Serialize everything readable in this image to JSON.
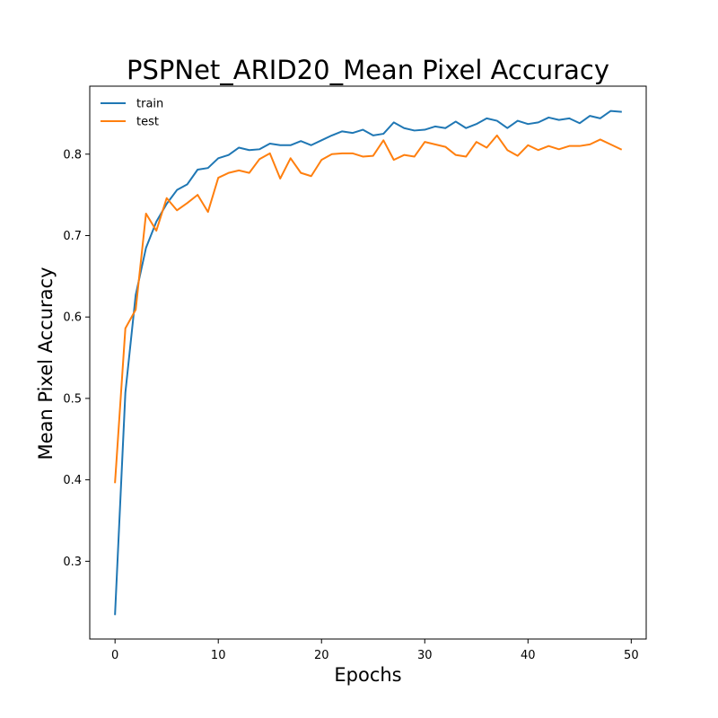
{
  "chart_data": {
    "type": "line",
    "title": "PSPNet_ARID20_Mean Pixel Accuracy",
    "xlabel": "Epochs",
    "ylabel": "Mean Pixel Accuracy",
    "xlim": [
      -2.45,
      51.45
    ],
    "ylim": [
      0.2045,
      0.8835
    ],
    "xticks": [
      0,
      10,
      20,
      30,
      40,
      50
    ],
    "yticks": [
      0.3,
      0.4,
      0.5,
      0.6,
      0.7,
      0.8
    ],
    "xtick_labels": [
      "0",
      "10",
      "20",
      "30",
      "40",
      "50"
    ],
    "ytick_labels": [
      "0.3",
      "0.4",
      "0.5",
      "0.6",
      "0.7",
      "0.8"
    ],
    "legend_position": "top-left",
    "grid": false,
    "x": [
      0,
      1,
      2,
      3,
      4,
      5,
      6,
      7,
      8,
      9,
      10,
      11,
      12,
      13,
      14,
      15,
      16,
      17,
      18,
      19,
      20,
      21,
      22,
      23,
      24,
      25,
      26,
      27,
      28,
      29,
      30,
      31,
      32,
      33,
      34,
      35,
      36,
      37,
      38,
      39,
      40,
      41,
      42,
      43,
      44,
      45,
      46,
      47,
      48,
      49
    ],
    "series": [
      {
        "name": "train",
        "color": "#1f77b4",
        "values": [
          0.235,
          0.507,
          0.627,
          0.685,
          0.717,
          0.739,
          0.756,
          0.763,
          0.781,
          0.783,
          0.795,
          0.799,
          0.808,
          0.805,
          0.806,
          0.813,
          0.811,
          0.811,
          0.816,
          0.811,
          0.817,
          0.823,
          0.828,
          0.826,
          0.83,
          0.823,
          0.825,
          0.839,
          0.832,
          0.829,
          0.83,
          0.834,
          0.832,
          0.84,
          0.832,
          0.837,
          0.844,
          0.841,
          0.832,
          0.841,
          0.837,
          0.839,
          0.845,
          0.842,
          0.844,
          0.838,
          0.847,
          0.844,
          0.853,
          0.852
        ]
      },
      {
        "name": "test",
        "color": "#ff7f0e",
        "values": [
          0.397,
          0.586,
          0.609,
          0.727,
          0.706,
          0.746,
          0.731,
          0.74,
          0.75,
          0.729,
          0.771,
          0.777,
          0.78,
          0.777,
          0.794,
          0.801,
          0.77,
          0.795,
          0.777,
          0.773,
          0.793,
          0.8,
          0.801,
          0.801,
          0.797,
          0.798,
          0.817,
          0.793,
          0.799,
          0.797,
          0.815,
          0.812,
          0.809,
          0.799,
          0.797,
          0.815,
          0.808,
          0.823,
          0.805,
          0.798,
          0.811,
          0.805,
          0.81,
          0.806,
          0.81,
          0.81,
          0.812,
          0.818,
          0.812,
          0.806
        ]
      }
    ]
  }
}
